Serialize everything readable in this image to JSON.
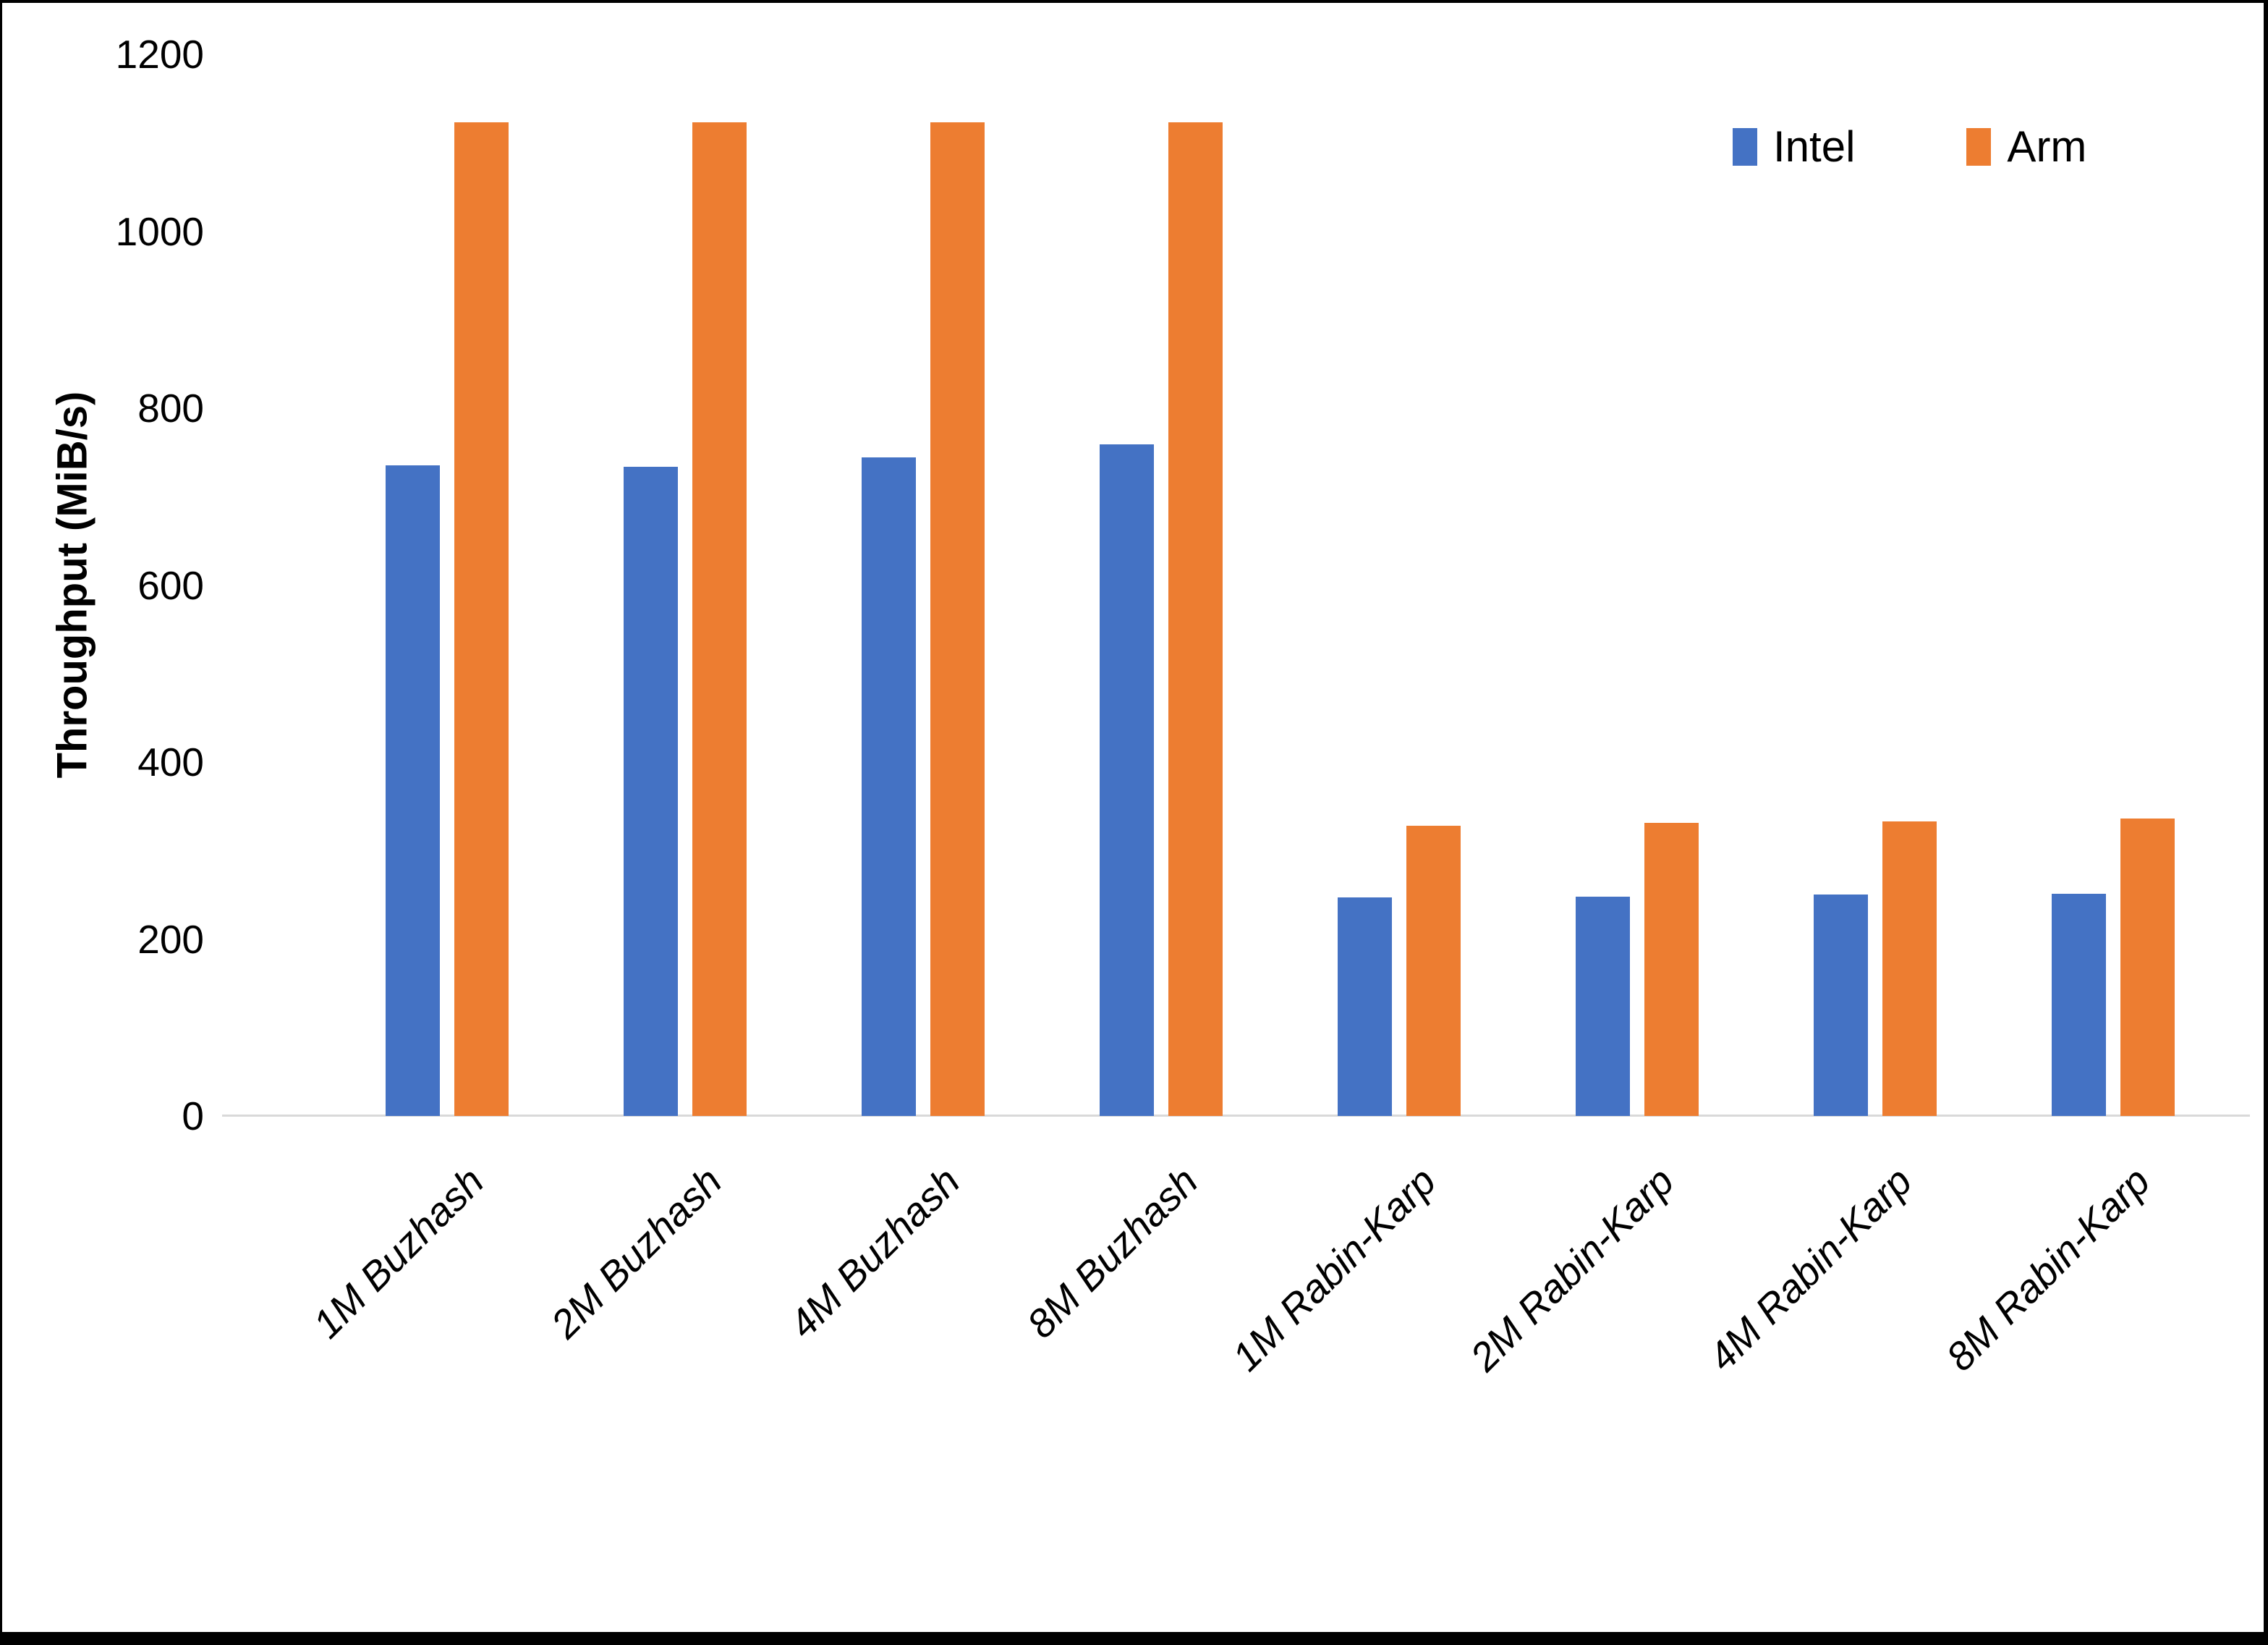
{
  "chart_data": {
    "type": "bar",
    "title": "",
    "xlabel": "",
    "ylabel": "Throughput (MiB/s)",
    "categories": [
      "1M Buzhash",
      "2M Buzhash",
      "4M Buzhash",
      "8M Buzhash",
      "1M Rabin-Karp",
      "2M Rabin-Karp",
      "4M Rabin-Karp",
      "8M Rabin-Karp"
    ],
    "series": [
      {
        "name": "Intel",
        "color": "#4472C4",
        "values": [
          735,
          734,
          744,
          759,
          247,
          248,
          250,
          251
        ]
      },
      {
        "name": "Arm",
        "color": "#ED7D31",
        "values": [
          1123,
          1123,
          1123,
          1123,
          328,
          331,
          333,
          336
        ]
      }
    ],
    "ylim": [
      0,
      1200
    ],
    "yticks": [
      0,
      200,
      400,
      600,
      800,
      1000,
      1200
    ],
    "grid": false,
    "legend_position": "top-right",
    "baseline_color": "#d9d9d9",
    "text_color": "#000000"
  }
}
